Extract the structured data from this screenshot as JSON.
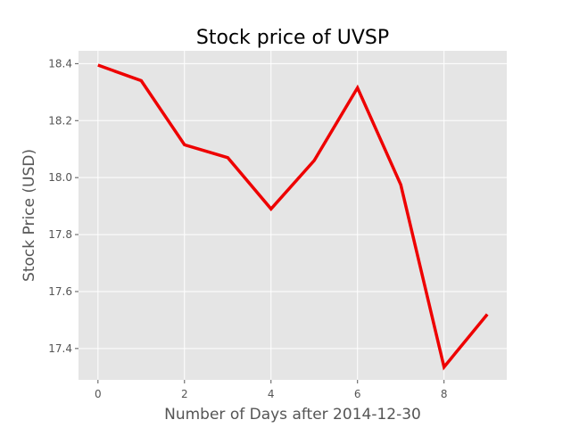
{
  "chart_data": {
    "type": "line",
    "title": "Stock price of UVSP",
    "xlabel": "Number of Days after 2014-12-30",
    "ylabel": "Stock Price (USD)",
    "xlim": [
      -0.45,
      9.45
    ],
    "ylim": [
      17.29,
      18.445
    ],
    "xticks": [
      0,
      2,
      4,
      6,
      8
    ],
    "yticks": [
      17.4,
      17.6,
      17.8,
      18.0,
      18.2,
      18.4
    ],
    "ytick_labels": [
      "17.4",
      "17.6",
      "17.8",
      "18.0",
      "18.2",
      "18.4"
    ],
    "grid": true,
    "colors": {
      "line": "#ee0000",
      "plot_bg": "#e5e5e5",
      "grid": "#ffffff"
    },
    "series": [
      {
        "x": [
          0,
          1,
          2,
          3,
          4,
          5,
          6,
          7,
          8,
          9
        ],
        "values": [
          18.395,
          18.34,
          18.115,
          18.07,
          17.89,
          18.06,
          18.315,
          17.975,
          17.335,
          17.52
        ]
      }
    ]
  }
}
